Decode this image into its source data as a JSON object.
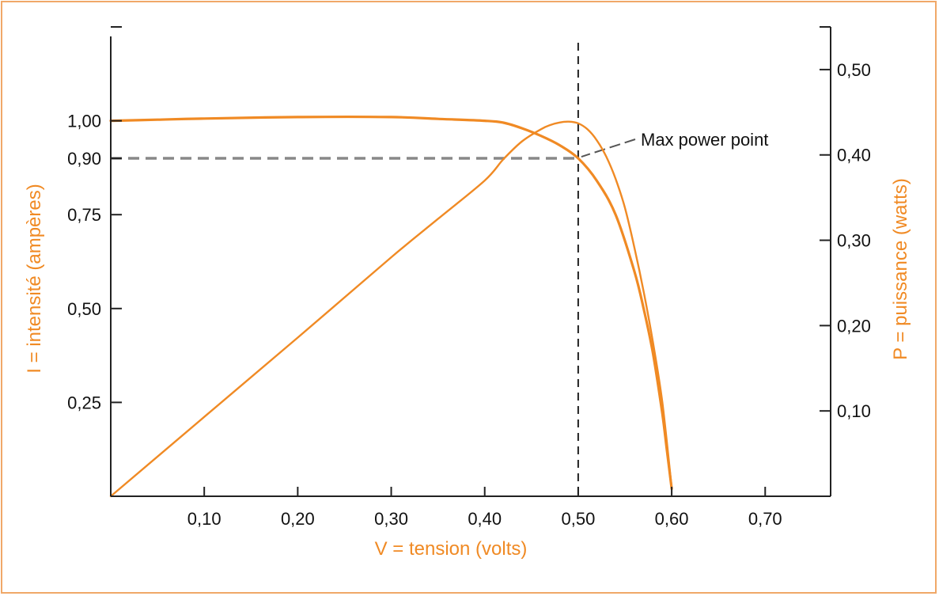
{
  "colors": {
    "frame": "#f0a868",
    "curve": "#f08a24",
    "axis": "#222222",
    "guide_grey": "#888888",
    "text": "#111111"
  },
  "chart_data": {
    "type": "line",
    "xlabel": "V = tension (volts)",
    "ylabel_left": "I = intensité (ampères)",
    "ylabel_right": "P = puissance (watts)",
    "xlim": [
      0,
      0.77
    ],
    "ylim_left": [
      0,
      1.25
    ],
    "ylim_right": [
      0,
      0.55
    ],
    "x_ticks": [
      {
        "value": 0.1,
        "label": "0,10"
      },
      {
        "value": 0.2,
        "label": "0,20"
      },
      {
        "value": 0.3,
        "label": "0,30"
      },
      {
        "value": 0.4,
        "label": "0,40"
      },
      {
        "value": 0.5,
        "label": "0,50"
      },
      {
        "value": 0.6,
        "label": "0,60"
      },
      {
        "value": 0.7,
        "label": "0,70"
      }
    ],
    "y_left_ticks": [
      {
        "value": 0.25,
        "label": "0,25"
      },
      {
        "value": 0.5,
        "label": "0,50"
      },
      {
        "value": 0.75,
        "label": "0,75"
      },
      {
        "value": 0.9,
        "label": "0,90"
      },
      {
        "value": 1.0,
        "label": "1,00"
      },
      {
        "value": 1.25,
        "label": ""
      }
    ],
    "y_right_ticks": [
      {
        "value": 0.1,
        "label": "0,10"
      },
      {
        "value": 0.2,
        "label": "0,20"
      },
      {
        "value": 0.3,
        "label": "0,30"
      },
      {
        "value": 0.4,
        "label": "0,40"
      },
      {
        "value": 0.5,
        "label": "0,50"
      },
      {
        "value": 0.55,
        "label": ""
      }
    ],
    "series": [
      {
        "axis": "left",
        "x": [
          0,
          0.05,
          0.1,
          0.2,
          0.3,
          0.35,
          0.4,
          0.42,
          0.44,
          0.46,
          0.48,
          0.5,
          0.52,
          0.54,
          0.56,
          0.57,
          0.58,
          0.59,
          0.595,
          0.6
        ],
        "values": [
          1.0,
          1.003,
          1.006,
          1.01,
          1.01,
          1.005,
          1.0,
          0.995,
          0.98,
          0.96,
          0.935,
          0.9,
          0.84,
          0.75,
          0.6,
          0.5,
          0.38,
          0.22,
          0.12,
          0.02
        ]
      },
      {
        "axis": "right",
        "x": [
          0,
          0.1,
          0.2,
          0.3,
          0.35,
          0.4,
          0.42,
          0.44,
          0.46,
          0.47,
          0.48,
          0.49,
          0.5,
          0.51,
          0.52,
          0.53,
          0.54,
          0.55,
          0.56,
          0.57,
          0.58,
          0.59,
          0.6
        ],
        "values": [
          0,
          0.093,
          0.186,
          0.28,
          0.325,
          0.37,
          0.395,
          0.416,
          0.43,
          0.435,
          0.438,
          0.439,
          0.437,
          0.43,
          0.417,
          0.398,
          0.372,
          0.338,
          0.292,
          0.24,
          0.18,
          0.11,
          0.01
        ]
      }
    ],
    "annotations": {
      "max_power_label": "Max power point",
      "mpp_v": 0.5,
      "mpp_i": 0.9
    }
  }
}
